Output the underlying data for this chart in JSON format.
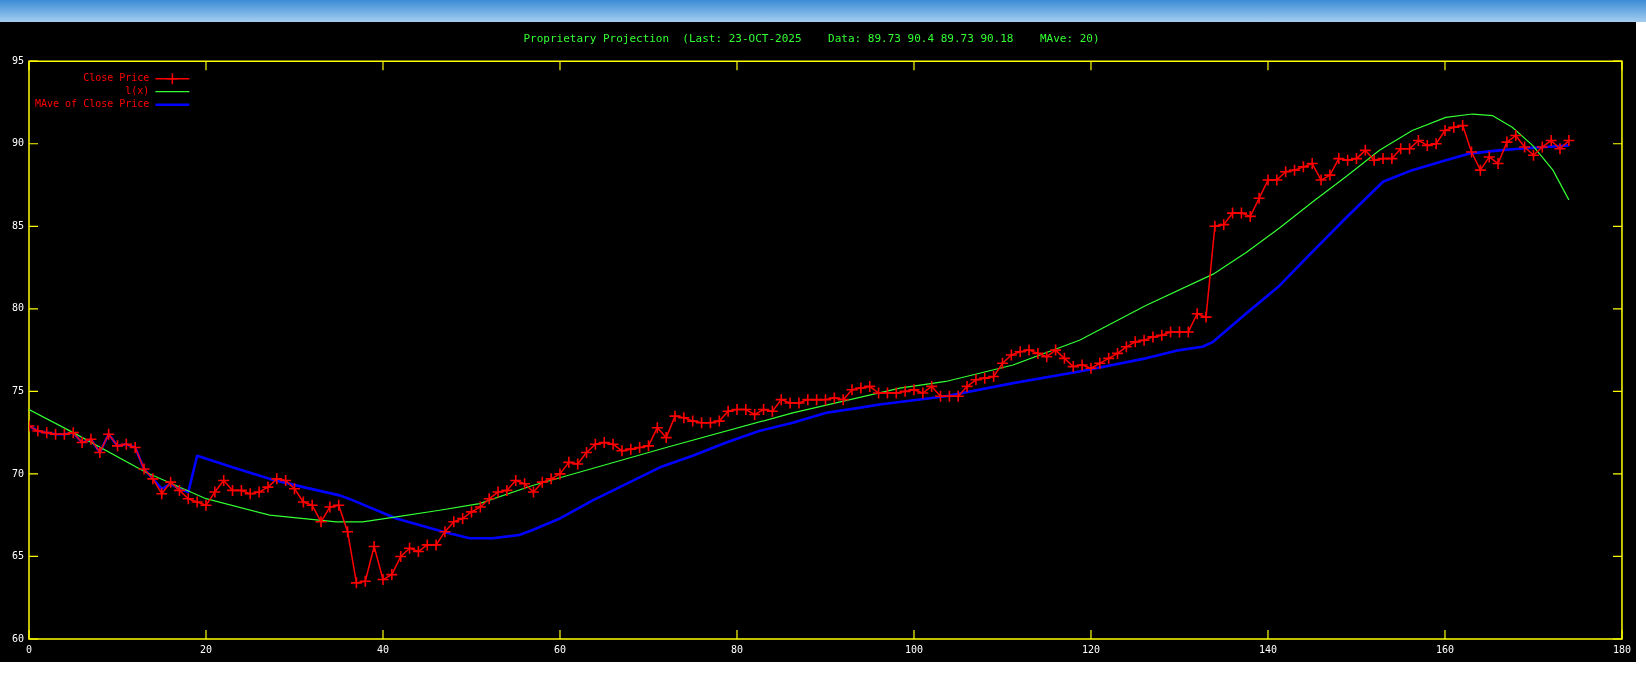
{
  "chart_data": {
    "type": "line",
    "title": "Proprietary Projection  (Last: 23-OCT-2025    Data: 89.73 90.4 89.73 90.18    MAve: 20)",
    "x": [
      0,
      1,
      2,
      3,
      4,
      5,
      6,
      7,
      8,
      9,
      10,
      11,
      12,
      13,
      14,
      15,
      16,
      17,
      18,
      19,
      20,
      21,
      22,
      23,
      24,
      25,
      26,
      27,
      28,
      29,
      30,
      31,
      32,
      33,
      34,
      35,
      36,
      37,
      38,
      39,
      40,
      41,
      42,
      43,
      44,
      45,
      46,
      47,
      48,
      49,
      50,
      51,
      52,
      53,
      54,
      55,
      56,
      57,
      58,
      59,
      60,
      61,
      62,
      63,
      64,
      65,
      66,
      67,
      68,
      69,
      70,
      71,
      72,
      73,
      74,
      75,
      76,
      77,
      78,
      79,
      80,
      81,
      82,
      83,
      84,
      85,
      86,
      87,
      88,
      89,
      90,
      91,
      92,
      93,
      94,
      95,
      96,
      97,
      98,
      99,
      100,
      101,
      102,
      103,
      104,
      105,
      106,
      107,
      108,
      109,
      110,
      111,
      112,
      113,
      114,
      115,
      116,
      117,
      118,
      119,
      120,
      121,
      122,
      123,
      124,
      125,
      126,
      127,
      128,
      129,
      130,
      131,
      132,
      133,
      134,
      135,
      136,
      137,
      138,
      139,
      140,
      141,
      142,
      143,
      144,
      145,
      146,
      147,
      148,
      149,
      150,
      151,
      152,
      153,
      154,
      155,
      156,
      157,
      158,
      159,
      160,
      161,
      162,
      163,
      164,
      165,
      166,
      167,
      168,
      169,
      170,
      171,
      172,
      173,
      174
    ],
    "series": [
      {
        "name": "Close Price",
        "color": "#ff0000",
        "marker": "cross",
        "values": [
          72.9,
          72.6,
          72.5,
          72.4,
          72.4,
          72.5,
          71.9,
          72.1,
          71.3,
          72.4,
          71.7,
          71.8,
          71.6,
          70.3,
          69.7,
          68.8,
          69.5,
          69.0,
          68.5,
          68.3,
          68.1,
          68.9,
          69.6,
          69.0,
          69.0,
          68.8,
          68.9,
          69.2,
          69.7,
          69.6,
          69.1,
          68.3,
          68.1,
          67.1,
          68.0,
          68.1,
          66.5,
          63.4,
          63.5,
          65.6,
          63.6,
          63.9,
          65.0,
          65.5,
          65.3,
          65.7,
          65.7,
          66.5,
          67.1,
          67.3,
          67.7,
          68.0,
          68.5,
          68.9,
          69.0,
          69.6,
          69.4,
          68.9,
          69.5,
          69.7,
          70.0,
          70.7,
          70.6,
          71.3,
          71.8,
          71.9,
          71.8,
          71.4,
          71.5,
          71.6,
          71.7,
          72.8,
          72.2,
          73.5,
          73.4,
          73.2,
          73.1,
          73.1,
          73.2,
          73.8,
          73.9,
          73.9,
          73.6,
          73.9,
          73.8,
          74.5,
          74.3,
          74.3,
          74.5,
          74.5,
          74.5,
          74.6,
          74.5,
          75.1,
          75.2,
          75.3,
          74.9,
          74.9,
          74.9,
          75.0,
          75.1,
          74.9,
          75.3,
          74.7,
          74.7,
          74.7,
          75.3,
          75.7,
          75.8,
          75.9,
          76.7,
          77.2,
          77.4,
          77.5,
          77.3,
          77.1,
          77.5,
          77.0,
          76.5,
          76.6,
          76.4,
          76.7,
          77.0,
          77.3,
          77.7,
          78.0,
          78.1,
          78.3,
          78.4,
          78.6,
          78.6,
          78.6,
          79.7,
          79.5,
          85.0,
          85.1,
          85.8,
          85.8,
          85.6,
          86.7,
          87.8,
          87.8,
          88.3,
          88.4,
          88.6,
          88.8,
          87.8,
          88.1,
          89.1,
          89.0,
          89.1,
          89.6,
          89.0,
          89.1,
          89.1,
          89.7,
          89.7,
          90.2,
          89.9,
          90.0,
          90.8,
          91.0,
          91.1,
          89.5,
          88.4,
          89.2,
          88.8,
          90.1,
          90.5,
          89.8,
          89.3,
          89.8,
          90.2,
          89.7,
          90.2
        ]
      },
      {
        "name": "l(x)",
        "color": "#33ff33",
        "marker": "none",
        "x": [
          0,
          5,
          13.2,
          20,
          27.2,
          34.7,
          37.7,
          41.5,
          46.4,
          50.9,
          56.9,
          72,
          86.3,
          98.4,
          103.6,
          111.2,
          118.7,
          126.2,
          133.8,
          137.5,
          141.3,
          145.1,
          148.8,
          152.6,
          156.3,
          160.1,
          163.1,
          165.4,
          167.6,
          169.9,
          172.2,
          174
        ],
        "values": [
          73.9,
          72.5,
          70.1,
          68.5,
          67.5,
          67.1,
          67.1,
          67.4,
          67.8,
          68.2,
          69.3,
          71.6,
          73.7,
          75.2,
          75.6,
          76.6,
          78.1,
          80.2,
          82.1,
          83.4,
          84.9,
          86.5,
          88.0,
          89.6,
          90.8,
          91.6,
          91.8,
          91.7,
          91.0,
          89.9,
          88.4,
          86.6
        ]
      },
      {
        "name": "MAve of Close Price",
        "color": "#0000ff",
        "marker": "none",
        "x": [
          0,
          1,
          2,
          3,
          4,
          5,
          6,
          7,
          8,
          9,
          10,
          11,
          12,
          13,
          14,
          15,
          16,
          17,
          18,
          19,
          23,
          27.2,
          31,
          35.1,
          36.6,
          41.5,
          46.8,
          49.8,
          52.4,
          55.4,
          56.9,
          60,
          63.7,
          67.5,
          71.3,
          75,
          78.8,
          82.5,
          86.3,
          90.1,
          93.8,
          96.1,
          103.6,
          111.2,
          118.7,
          126.2,
          130,
          132.6,
          133.8,
          137.5,
          141.3,
          145.1,
          148.8,
          153,
          156.3,
          160.1,
          162.7,
          166.1,
          168.4,
          171.4,
          174
        ],
        "values": [
          72.9,
          72.6,
          72.5,
          72.4,
          72.4,
          72.5,
          71.9,
          72.1,
          71.3,
          72.4,
          71.7,
          71.8,
          71.6,
          70.3,
          69.7,
          69.1,
          69.4,
          69.1,
          68.9,
          71.1,
          70.4,
          69.7,
          69.2,
          68.7,
          68.4,
          67.3,
          66.5,
          66.1,
          66.1,
          66.3,
          66.6,
          67.3,
          68.4,
          69.4,
          70.4,
          71.1,
          71.9,
          72.6,
          73.1,
          73.7,
          74.0,
          74.2,
          74.7,
          75.5,
          76.2,
          77.0,
          77.5,
          77.7,
          78.0,
          79.7,
          81.4,
          83.5,
          85.5,
          87.7,
          88.4,
          89.0,
          89.4,
          89.6,
          89.7,
          89.8,
          89.9
        ]
      }
    ],
    "xlim": [
      0,
      180
    ],
    "xticks": [
      0,
      20,
      40,
      60,
      80,
      100,
      120,
      140,
      160,
      180
    ],
    "ylim": [
      60,
      95
    ],
    "yticks": [
      60,
      65,
      70,
      75,
      80,
      85,
      90,
      95
    ],
    "legend": "top left"
  }
}
